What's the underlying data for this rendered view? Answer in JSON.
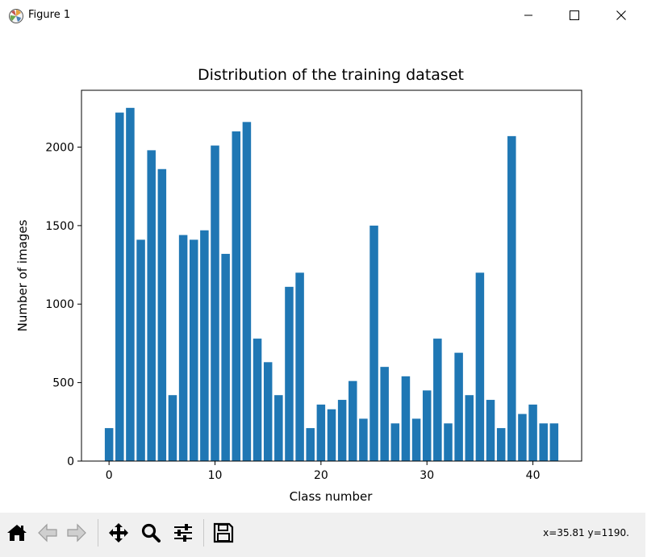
{
  "window": {
    "title": "Figure 1",
    "controls": {
      "minimize": "minimize-icon",
      "maximize": "maximize-icon",
      "close": "close-icon"
    }
  },
  "toolbar": {
    "buttons": [
      {
        "name": "home-button",
        "icon": "home-icon"
      },
      {
        "name": "back-button",
        "icon": "back-arrow-icon"
      },
      {
        "name": "forward-button",
        "icon": "forward-arrow-icon"
      },
      {
        "name": "pan-button",
        "icon": "move-icon"
      },
      {
        "name": "zoom-button",
        "icon": "magnifier-icon"
      },
      {
        "name": "configure-subplots-button",
        "icon": "sliders-icon"
      },
      {
        "name": "save-button",
        "icon": "floppy-disk-icon"
      }
    ],
    "coords": "x=35.81 y=1190."
  },
  "chart_data": {
    "type": "bar",
    "title": "Distribution of the training dataset",
    "xlabel": "Class number",
    "ylabel": "Number of images",
    "x": [
      0,
      1,
      2,
      3,
      4,
      5,
      6,
      7,
      8,
      9,
      10,
      11,
      12,
      13,
      14,
      15,
      16,
      17,
      18,
      19,
      20,
      21,
      22,
      23,
      24,
      25,
      26,
      27,
      28,
      29,
      30,
      31,
      32,
      33,
      34,
      35,
      36,
      37,
      38,
      39,
      40,
      41,
      42
    ],
    "values": [
      210,
      2220,
      2250,
      1410,
      1980,
      1860,
      420,
      1440,
      1410,
      1470,
      2010,
      1320,
      2100,
      2160,
      780,
      630,
      420,
      1110,
      1200,
      210,
      360,
      330,
      390,
      510,
      270,
      1500,
      600,
      240,
      540,
      270,
      450,
      780,
      240,
      690,
      420,
      1200,
      390,
      210,
      2070,
      300,
      360,
      240,
      240
    ],
    "xlim": [
      -2.6,
      44.6
    ],
    "ylim": [
      0,
      2362
    ],
    "xticks": [
      0,
      10,
      20,
      30,
      40
    ],
    "yticks": [
      0,
      500,
      1000,
      1500,
      2000
    ],
    "bar_color": "#1f77b4",
    "grid": false
  }
}
